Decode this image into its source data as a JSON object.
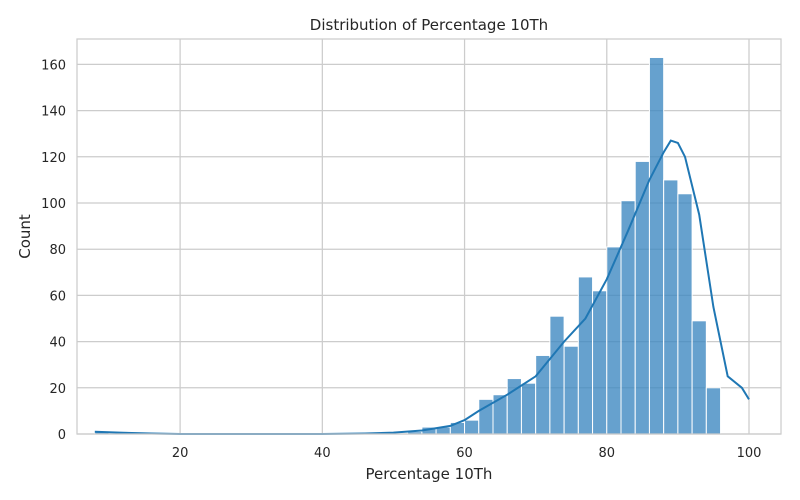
{
  "chart_data": {
    "type": "bar",
    "title": "Distribution of Percentage 10Th",
    "xlabel": "Percentage 10Th",
    "ylabel": "Count",
    "xlim": [
      5.5,
      104.5
    ],
    "ylim": [
      0,
      171
    ],
    "xticks": [
      20,
      40,
      60,
      80,
      100
    ],
    "yticks": [
      0,
      20,
      40,
      60,
      80,
      100,
      120,
      140,
      160
    ],
    "grid": true,
    "bar_color": "#3b87c0",
    "line_color": "#1f77b4",
    "bin_width": 2.0,
    "bins": [
      {
        "start": 8,
        "count": 1
      },
      {
        "start": 52,
        "count": 1
      },
      {
        "start": 54,
        "count": 3
      },
      {
        "start": 56,
        "count": 3
      },
      {
        "start": 58,
        "count": 5
      },
      {
        "start": 60,
        "count": 6
      },
      {
        "start": 62,
        "count": 15
      },
      {
        "start": 64,
        "count": 17
      },
      {
        "start": 66,
        "count": 24
      },
      {
        "start": 68,
        "count": 22
      },
      {
        "start": 70,
        "count": 34
      },
      {
        "start": 72,
        "count": 51
      },
      {
        "start": 74,
        "count": 38
      },
      {
        "start": 76,
        "count": 68
      },
      {
        "start": 78,
        "count": 62
      },
      {
        "start": 80,
        "count": 81
      },
      {
        "start": 82,
        "count": 101
      },
      {
        "start": 84,
        "count": 118
      },
      {
        "start": 86,
        "count": 163
      },
      {
        "start": 88,
        "count": 110
      },
      {
        "start": 90,
        "count": 104
      },
      {
        "start": 92,
        "count": 49
      },
      {
        "start": 94,
        "count": 20
      },
      {
        "start": 96,
        "count": 0
      },
      {
        "start": 98,
        "count": 0
      }
    ],
    "kde": {
      "x": [
        8,
        12,
        16,
        20,
        30,
        40,
        46,
        50,
        54,
        58,
        60,
        62,
        66,
        70,
        74,
        77,
        80,
        83,
        86,
        88,
        89,
        90,
        91,
        93,
        95,
        97,
        99,
        100
      ],
      "y": [
        1,
        0.5,
        0.2,
        0,
        0,
        0,
        0.2,
        0.6,
        1.5,
        3.5,
        6,
        10,
        17,
        25,
        40,
        50,
        67,
        88,
        110,
        122,
        127,
        126,
        120,
        95,
        55,
        25,
        20,
        15
      ]
    }
  }
}
